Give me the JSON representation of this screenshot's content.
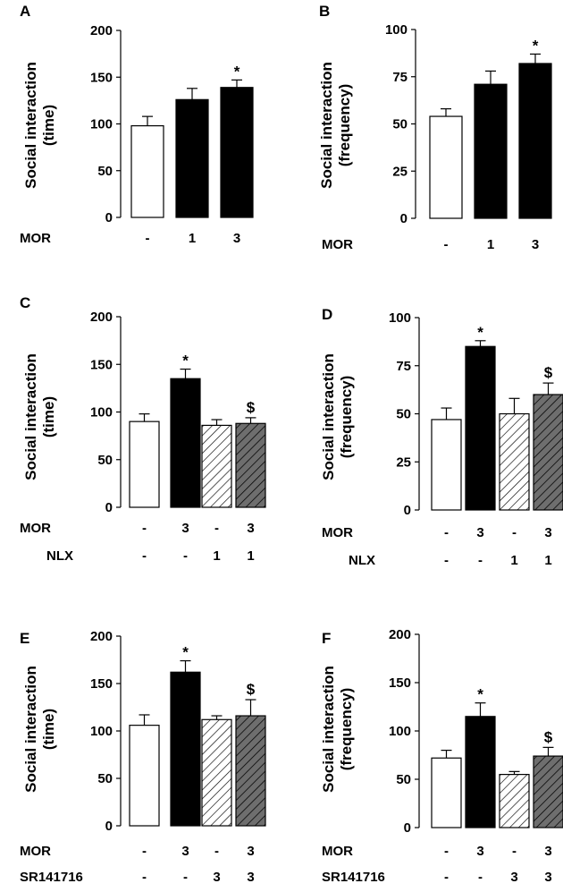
{
  "chart_data": [
    {
      "panel": "A",
      "type": "bar",
      "ylabel": [
        "Social interaction",
        "(time)"
      ],
      "ylim": [
        0,
        200
      ],
      "yticks": [
        0,
        50,
        100,
        150,
        200
      ],
      "conditions": [
        {
          "label": "MOR",
          "values": [
            "-",
            "1",
            "3"
          ]
        }
      ],
      "bars": [
        {
          "value": 98,
          "error": 10,
          "style": "open",
          "sig": ""
        },
        {
          "value": 126,
          "error": 12,
          "style": "solid",
          "sig": ""
        },
        {
          "value": 139,
          "error": 8,
          "style": "solid",
          "sig": "*"
        }
      ]
    },
    {
      "panel": "B",
      "type": "bar",
      "ylabel": [
        "Social interaction",
        "(frequency)"
      ],
      "ylim": [
        0,
        100
      ],
      "yticks": [
        0,
        25,
        50,
        75,
        100
      ],
      "conditions": [
        {
          "label": "MOR",
          "values": [
            "-",
            "1",
            "3"
          ]
        }
      ],
      "bars": [
        {
          "value": 54,
          "error": 4,
          "style": "open",
          "sig": ""
        },
        {
          "value": 71,
          "error": 7,
          "style": "solid",
          "sig": ""
        },
        {
          "value": 82,
          "error": 5,
          "style": "solid",
          "sig": "*"
        }
      ]
    },
    {
      "panel": "C",
      "type": "bar",
      "ylabel": [
        "Social interaction",
        "(time)"
      ],
      "ylim": [
        0,
        200
      ],
      "yticks": [
        0,
        50,
        100,
        150,
        200
      ],
      "conditions": [
        {
          "label": "MOR",
          "values": [
            "-",
            "3",
            "-",
            "3"
          ]
        },
        {
          "label": "NLX",
          "values": [
            "-",
            "-",
            "1",
            "1"
          ]
        }
      ],
      "bars": [
        {
          "value": 90,
          "error": 8,
          "style": "open",
          "sig": ""
        },
        {
          "value": 135,
          "error": 10,
          "style": "solid",
          "sig": "*"
        },
        {
          "value": 86,
          "error": 6,
          "style": "hatch",
          "sig": ""
        },
        {
          "value": 88,
          "error": 6,
          "style": "hatch-gray",
          "sig": "$"
        }
      ]
    },
    {
      "panel": "D",
      "type": "bar",
      "ylabel": [
        "Social interaction",
        "(frequency)"
      ],
      "ylim": [
        0,
        100
      ],
      "yticks": [
        0,
        25,
        50,
        75,
        100
      ],
      "conditions": [
        {
          "label": "MOR",
          "values": [
            "-",
            "3",
            "-",
            "3"
          ]
        },
        {
          "label": "NLX",
          "values": [
            "-",
            "-",
            "1",
            "1"
          ]
        }
      ],
      "bars": [
        {
          "value": 47,
          "error": 6,
          "style": "open",
          "sig": ""
        },
        {
          "value": 85,
          "error": 3,
          "style": "solid",
          "sig": "*"
        },
        {
          "value": 50,
          "error": 8,
          "style": "hatch",
          "sig": ""
        },
        {
          "value": 60,
          "error": 6,
          "style": "hatch-gray",
          "sig": "$"
        }
      ]
    },
    {
      "panel": "E",
      "type": "bar",
      "ylabel": [
        "Social interaction",
        "(time)"
      ],
      "ylim": [
        0,
        200
      ],
      "yticks": [
        0,
        50,
        100,
        150,
        200
      ],
      "conditions": [
        {
          "label": "MOR",
          "values": [
            "-",
            "3",
            "-",
            "3"
          ]
        },
        {
          "label": "SR141716",
          "values": [
            "-",
            "-",
            "3",
            "3"
          ]
        }
      ],
      "bars": [
        {
          "value": 106,
          "error": 11,
          "style": "open",
          "sig": ""
        },
        {
          "value": 162,
          "error": 12,
          "style": "solid",
          "sig": "*"
        },
        {
          "value": 112,
          "error": 4,
          "style": "hatch",
          "sig": ""
        },
        {
          "value": 116,
          "error": 17,
          "style": "hatch-gray",
          "sig": "$"
        }
      ]
    },
    {
      "panel": "F",
      "type": "bar",
      "ylabel": [
        "Social interaction",
        "(frequency)"
      ],
      "ylim": [
        0,
        200
      ],
      "yticks": [
        0,
        50,
        100,
        150,
        200
      ],
      "conditions": [
        {
          "label": "MOR",
          "values": [
            "-",
            "3",
            "-",
            "3"
          ]
        },
        {
          "label": "SR141716",
          "values": [
            "-",
            "-",
            "3",
            "3"
          ]
        }
      ],
      "bars": [
        {
          "value": 72,
          "error": 8,
          "style": "open",
          "sig": ""
        },
        {
          "value": 115,
          "error": 14,
          "style": "solid",
          "sig": "*"
        },
        {
          "value": 55,
          "error": 3,
          "style": "hatch",
          "sig": ""
        },
        {
          "value": 74,
          "error": 9,
          "style": "hatch-gray",
          "sig": "$"
        }
      ]
    }
  ]
}
